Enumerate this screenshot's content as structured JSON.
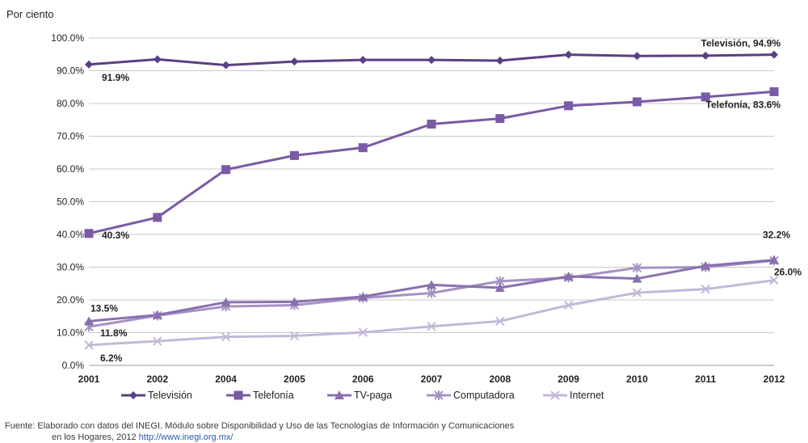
{
  "chart_data": {
    "type": "line",
    "ylabel": "Por ciento",
    "ylim": [
      0,
      100
    ],
    "y_ticks": [
      "0.0%",
      "10.0%",
      "20.0%",
      "30.0%",
      "40.0%",
      "50.0%",
      "60.0%",
      "70.0%",
      "80.0%",
      "90.0%",
      "100.0%"
    ],
    "categories": [
      "2001",
      "2002",
      "2004",
      "2005",
      "2006",
      "2007",
      "2008",
      "2009",
      "2010",
      "2011",
      "2012"
    ],
    "grid": true,
    "legend_position": "bottom",
    "series": [
      {
        "name": "Televisión",
        "marker": "diamond",
        "color": "#5b3f82",
        "values": [
          91.9,
          93.5,
          91.7,
          92.8,
          93.3,
          93.3,
          93.1,
          94.9,
          94.5,
          94.6,
          94.9
        ]
      },
      {
        "name": "Telefonía",
        "marker": "square",
        "color": "#7a5aa4",
        "values": [
          40.3,
          45.2,
          59.8,
          64.1,
          66.5,
          73.7,
          75.4,
          79.3,
          80.5,
          82.0,
          83.6
        ]
      },
      {
        "name": "TV-paga",
        "marker": "triangle",
        "color": "#8a70b0",
        "values": [
          13.5,
          15.4,
          19.3,
          19.4,
          21.0,
          24.6,
          23.7,
          27.2,
          26.5,
          30.4,
          32.2
        ]
      },
      {
        "name": "Computadora",
        "marker": "star",
        "color": "#a592c4",
        "values": [
          11.8,
          15.2,
          18.0,
          18.4,
          20.6,
          22.1,
          25.7,
          26.8,
          29.8,
          30.0,
          32.0
        ]
      },
      {
        "name": "Internet",
        "marker": "x",
        "color": "#c4b8d9",
        "values": [
          6.2,
          7.4,
          8.7,
          9.0,
          10.1,
          11.9,
          13.5,
          18.4,
          22.2,
          23.3,
          26.0
        ]
      }
    ],
    "annotations": [
      {
        "text": "91.9%",
        "series": "Televisión",
        "category": "2001"
      },
      {
        "text": "Televisión, 94.9%",
        "series": "Televisión",
        "category": "2012"
      },
      {
        "text": "Telefonía, 83.6%",
        "series": "Telefonía",
        "category": "2012"
      },
      {
        "text": "40.3%",
        "series": "Telefonía",
        "category": "2001"
      },
      {
        "text": "32.2%",
        "series": "TV-paga",
        "category": "2012"
      },
      {
        "text": "13.5%",
        "series": "TV-paga",
        "category": "2001"
      },
      {
        "text": "26.0%",
        "series": "Internet",
        "category": "2012"
      },
      {
        "text": "11.8%",
        "series": "Computadora",
        "category": "2001"
      },
      {
        "text": "6.2%",
        "series": "Internet",
        "category": "2001"
      }
    ]
  },
  "source": {
    "line1": "Fuente: Elaborado con datos del INEGI. Módulo sobre Disponibilidad y Uso de las Tecnologías de Información y Comunicaciones",
    "line2": "en los Hogares, 2012",
    "url": "http://www.inegi.org.mx/"
  }
}
